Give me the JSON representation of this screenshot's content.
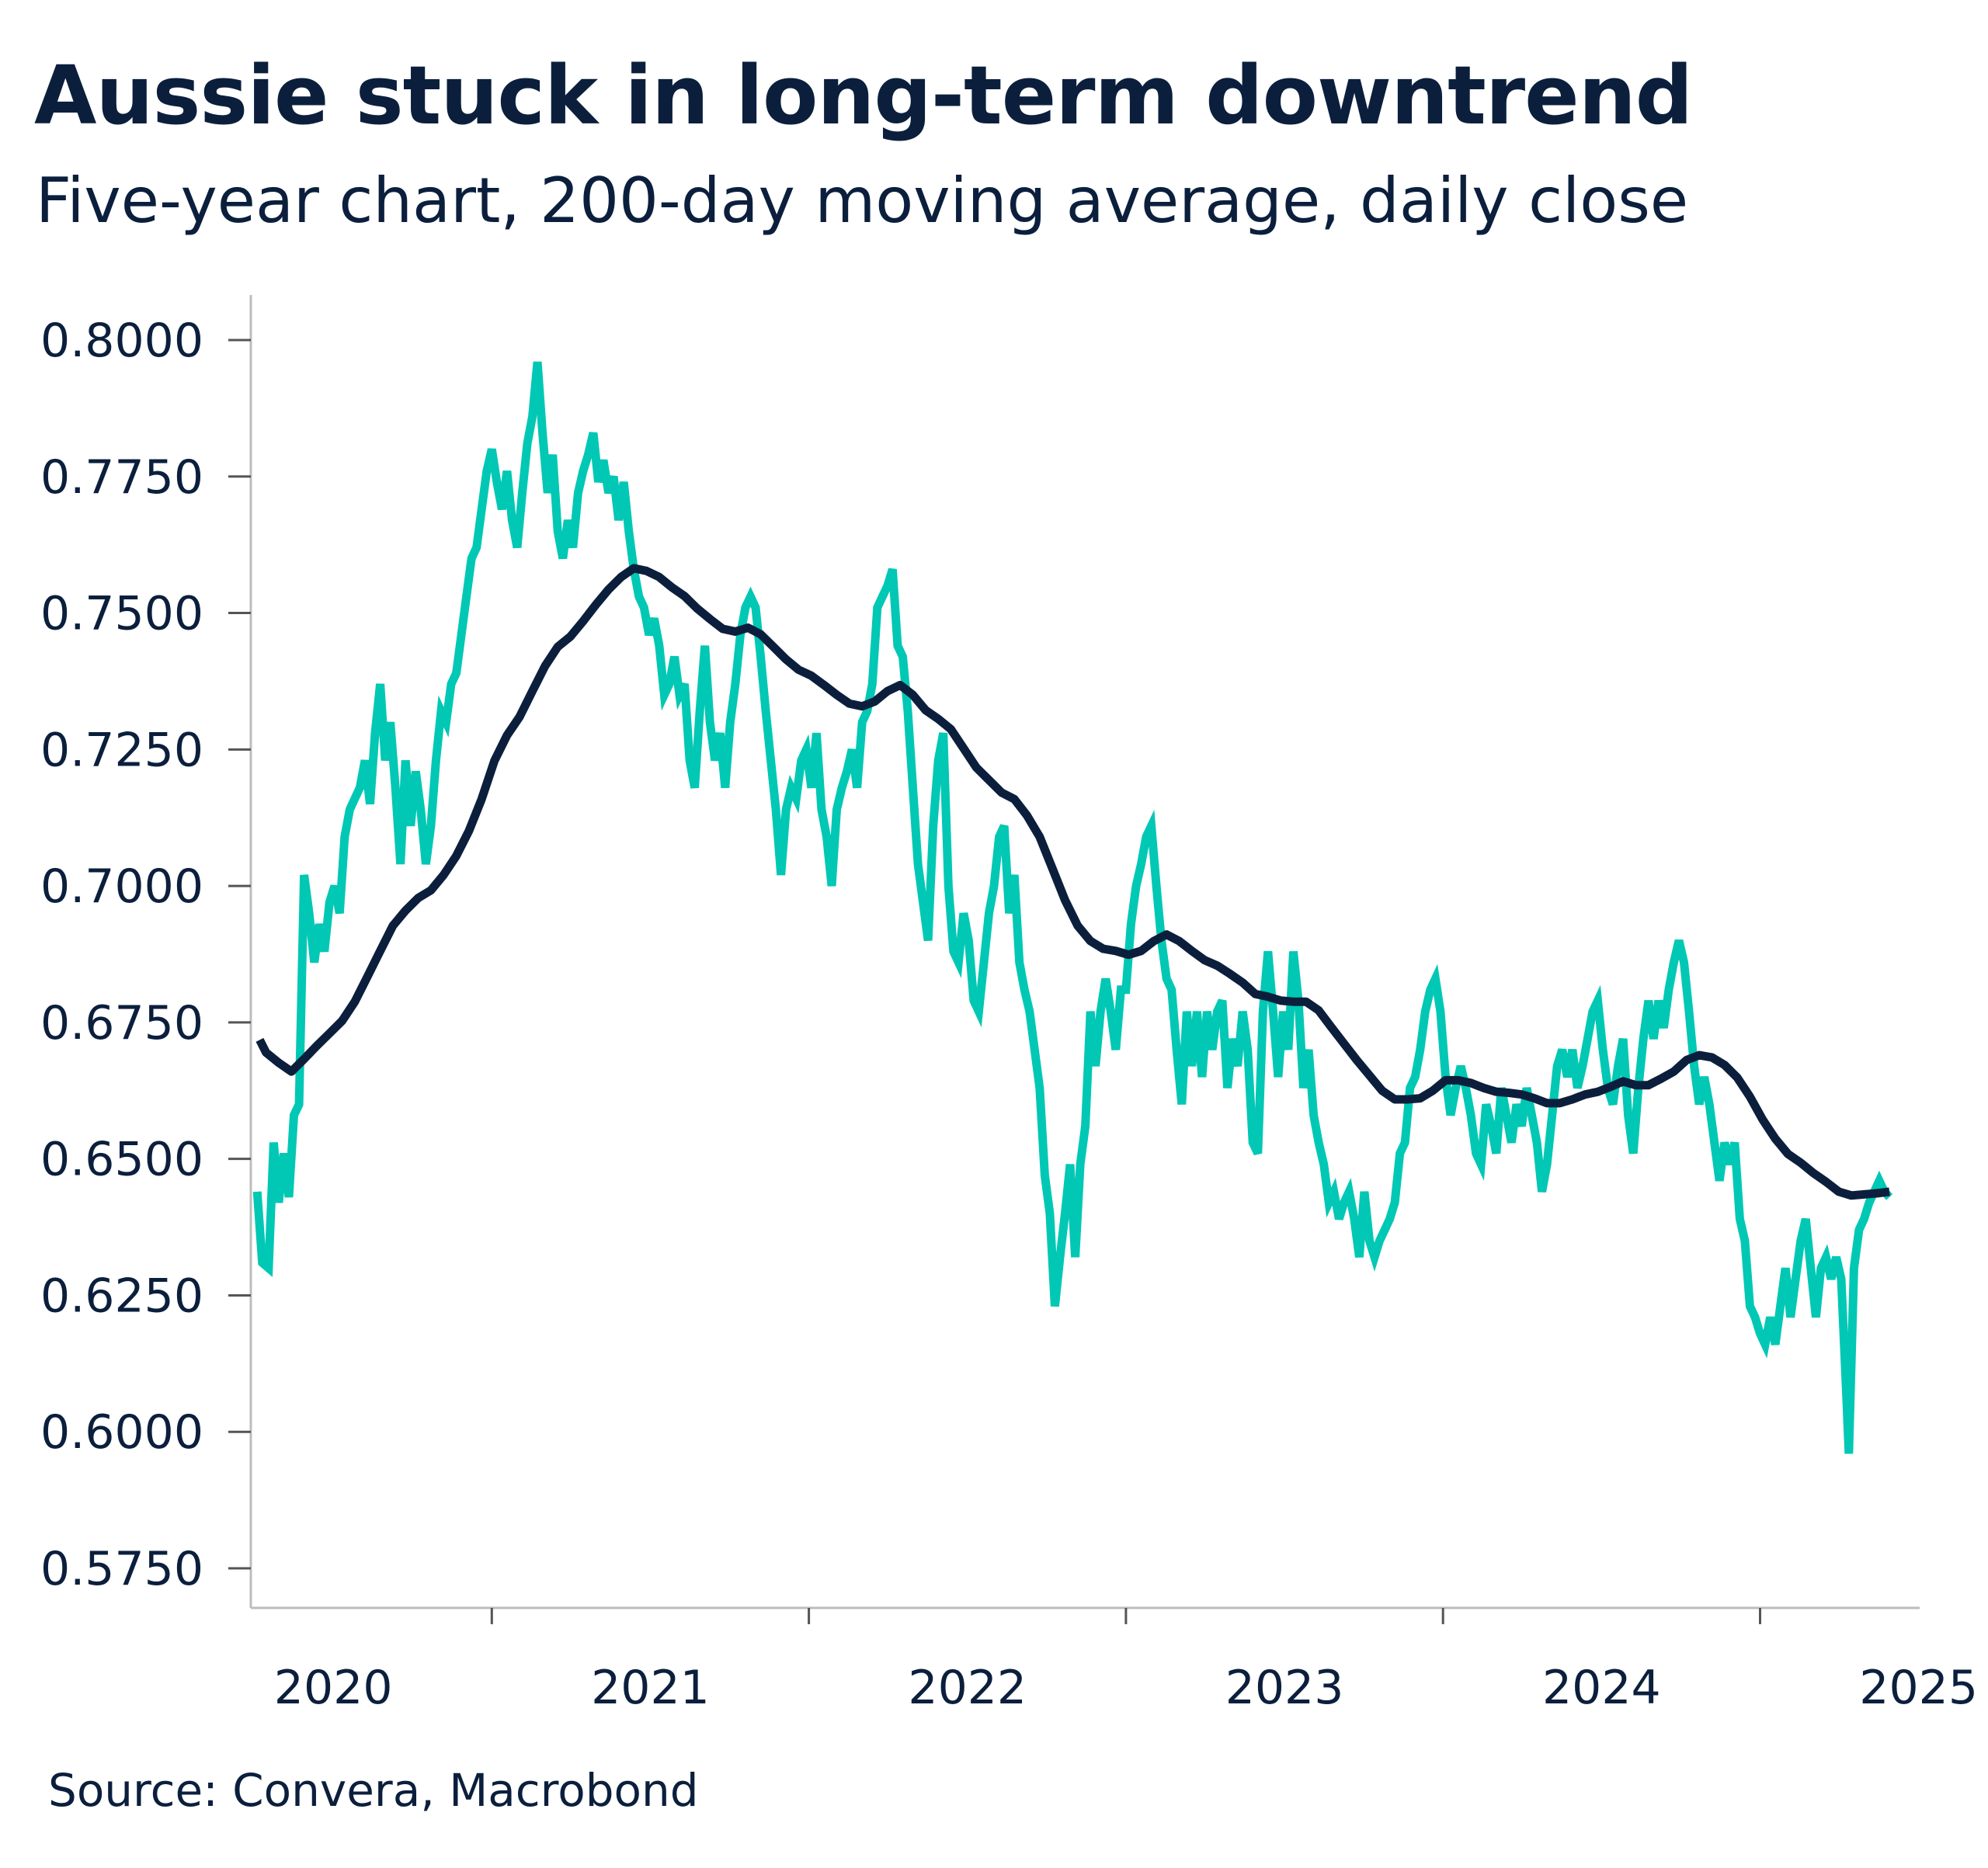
{
  "chart_data": {
    "type": "line",
    "title": "Aussie stuck in long-term downtrend",
    "subtitle": "Five-year chart, 200-day moving average, daily close",
    "source": "Source: Convera, Macrobond",
    "xlabel": "",
    "ylabel": "",
    "x_ticks": [
      "2020",
      "2021",
      "2022",
      "2023",
      "2024",
      "2025"
    ],
    "y_ticks": [
      "0.8000",
      "0.7750",
      "0.7500",
      "0.7250",
      "0.7000",
      "0.6750",
      "0.6500",
      "0.6250",
      "0.6000",
      "0.5750"
    ],
    "ylim": [
      0.575,
      0.8
    ],
    "xlim": [
      2020.24,
      2025.5
    ],
    "grid": false,
    "legend": "none",
    "colors": {
      "daily_close": "#00C8B4",
      "moving_average": "#0B1F3D",
      "text": "#0B1F3D",
      "axis": "#BDBDBD"
    },
    "series": [
      {
        "id": "daily_close",
        "x": [
          2020.26,
          2020.276,
          2020.296,
          2020.312,
          2020.328,
          2020.344,
          2020.36,
          2020.376,
          2020.392,
          2020.408,
          2020.424,
          2020.44,
          2020.456,
          2020.472,
          2020.488,
          2020.504,
          2020.52,
          2020.536,
          2020.552,
          2020.568,
          2020.584,
          2020.6,
          2020.616,
          2020.632,
          2020.648,
          2020.664,
          2020.68,
          2020.696,
          2020.712,
          2020.728,
          2020.744,
          2020.76,
          2020.776,
          2020.792,
          2020.808,
          2020.824,
          2020.84,
          2020.856,
          2020.872,
          2020.888,
          2020.904,
          2020.92,
          2020.936,
          2020.952,
          2020.968,
          2020.984,
          2021.0,
          2021.016,
          2021.032,
          2021.048,
          2021.064,
          2021.08,
          2021.096,
          2021.112,
          2021.128,
          2021.144,
          2021.16,
          2021.176,
          2021.192,
          2021.208,
          2021.224,
          2021.24,
          2021.256,
          2021.272,
          2021.288,
          2021.304,
          2021.32,
          2021.336,
          2021.352,
          2021.368,
          2021.384,
          2021.4,
          2021.416,
          2021.432,
          2021.448,
          2021.464,
          2021.48,
          2021.496,
          2021.512,
          2021.528,
          2021.544,
          2021.56,
          2021.576,
          2021.592,
          2021.608,
          2021.624,
          2021.64,
          2021.656,
          2021.672,
          2021.688,
          2021.704,
          2021.72,
          2021.736,
          2021.752,
          2021.768,
          2021.784,
          2021.8,
          2021.816,
          2021.832,
          2021.848,
          2021.864,
          2021.88,
          2021.896,
          2021.912,
          2021.928,
          2021.944,
          2021.96,
          2021.976,
          2021.992,
          2022.008,
          2022.024,
          2022.04,
          2022.056,
          2022.072,
          2022.088,
          2022.104,
          2022.12,
          2022.136,
          2022.152,
          2022.168,
          2022.184,
          2022.2,
          2022.216,
          2022.232,
          2022.248,
          2022.264,
          2022.28,
          2022.296,
          2022.312,
          2022.328,
          2022.344,
          2022.36,
          2022.376,
          2022.392,
          2022.408,
          2022.424,
          2022.44,
          2022.456,
          2022.472,
          2022.488,
          2022.504,
          2022.52,
          2022.536,
          2022.552,
          2022.568,
          2022.584,
          2022.6,
          2022.616,
          2022.632,
          2022.648,
          2022.664,
          2022.68,
          2022.696,
          2022.712,
          2022.728,
          2022.744,
          2022.76,
          2022.776,
          2022.792,
          2022.808,
          2022.824,
          2022.84,
          2022.856,
          2022.872,
          2022.888,
          2022.904,
          2022.92,
          2022.936,
          2022.952,
          2022.968,
          2022.984,
          2023.0,
          2023.016,
          2023.032,
          2023.048,
          2023.064,
          2023.08,
          2023.096,
          2023.112,
          2023.128,
          2023.144,
          2023.16,
          2023.176,
          2023.192,
          2023.208,
          2023.224,
          2023.24,
          2023.256,
          2023.272,
          2023.288,
          2023.304,
          2023.32,
          2023.336,
          2023.352,
          2023.368,
          2023.384,
          2023.4,
          2023.416,
          2023.432,
          2023.448,
          2023.464,
          2023.48,
          2023.496,
          2023.512,
          2023.528,
          2023.544,
          2023.56,
          2023.576,
          2023.592,
          2023.608,
          2023.624,
          2023.64,
          2023.656,
          2023.672,
          2023.688,
          2023.704,
          2023.72,
          2023.736,
          2023.752,
          2023.768,
          2023.784,
          2023.8,
          2023.816,
          2023.832,
          2023.848,
          2023.864,
          2023.88,
          2023.896,
          2023.912,
          2023.928,
          2023.944,
          2023.96,
          2023.976,
          2023.992,
          2024.008,
          2024.024,
          2024.04,
          2024.056,
          2024.072,
          2024.088,
          2024.104,
          2024.12,
          2024.136,
          2024.152,
          2024.168,
          2024.184,
          2024.2,
          2024.216,
          2024.232,
          2024.248,
          2024.264,
          2024.28,
          2024.296,
          2024.312,
          2024.328,
          2024.344,
          2024.36,
          2024.376,
          2024.392,
          2024.408,
          2024.424,
          2024.44,
          2024.456,
          2024.472,
          2024.488,
          2024.504,
          2024.52,
          2024.536,
          2024.552,
          2024.568,
          2024.584,
          2024.6,
          2024.616,
          2024.632,
          2024.648,
          2024.664,
          2024.68,
          2024.696,
          2024.712,
          2024.728,
          2024.744,
          2024.76,
          2024.776,
          2024.792,
          2024.808,
          2024.824,
          2024.84,
          2024.856,
          2024.872,
          2024.888,
          2024.904,
          2024.92,
          2024.936,
          2024.952,
          2024.968,
          2024.984,
          2025.0,
          2025.016,
          2025.032,
          2025.048,
          2025.064,
          2025.08,
          2025.096,
          2025.112,
          2025.128,
          2025.144,
          2025.16,
          2025.176,
          2025.192,
          2025.208,
          2025.224,
          2025.24,
          2025.256,
          2025.272,
          2025.28,
          2025.296,
          2025.312,
          2025.328,
          2025.344,
          2025.36,
          2025.376,
          2025.392,
          2025.408
        ],
        "y": [
          0.644,
          0.631,
          0.63,
          0.653,
          0.642,
          0.651,
          0.643,
          0.658,
          0.66,
          0.702,
          0.695,
          0.686,
          0.693,
          0.688,
          0.697,
          0.7,
          0.695,
          0.709,
          0.714,
          0.716,
          0.718,
          0.723,
          0.715,
          0.728,
          0.737,
          0.723,
          0.73,
          0.718,
          0.704,
          0.723,
          0.711,
          0.721,
          0.714,
          0.704,
          0.711,
          0.723,
          0.732,
          0.73,
          0.737,
          0.739,
          0.746,
          0.753,
          0.76,
          0.762,
          0.769,
          0.776,
          0.78,
          0.774,
          0.769,
          0.776,
          0.767,
          0.762,
          0.772,
          0.781,
          0.786,
          0.796,
          0.783,
          0.772,
          0.779,
          0.765,
          0.76,
          0.767,
          0.762,
          0.772,
          0.776,
          0.779,
          0.783,
          0.774,
          0.778,
          0.772,
          0.775,
          0.767,
          0.774,
          0.765,
          0.758,
          0.753,
          0.751,
          0.746,
          0.749,
          0.744,
          0.735,
          0.737,
          0.742,
          0.735,
          0.737,
          0.723,
          0.718,
          0.732,
          0.744,
          0.73,
          0.723,
          0.728,
          0.718,
          0.73,
          0.737,
          0.746,
          0.751,
          0.753,
          0.751,
          0.742,
          0.732,
          0.723,
          0.714,
          0.702,
          0.714,
          0.718,
          0.716,
          0.723,
          0.725,
          0.718,
          0.728,
          0.714,
          0.709,
          0.7,
          0.714,
          0.718,
          0.721,
          0.725,
          0.718,
          0.73,
          0.732,
          0.737,
          0.751,
          0.753,
          0.755,
          0.758,
          0.744,
          0.742,
          0.732,
          0.718,
          0.704,
          0.697,
          0.69,
          0.711,
          0.723,
          0.728,
          0.7,
          0.688,
          0.686,
          0.695,
          0.69,
          0.679,
          0.677,
          0.686,
          0.695,
          0.7,
          0.709,
          0.711,
          0.695,
          0.702,
          0.686,
          0.681,
          0.677,
          0.67,
          0.663,
          0.647,
          0.64,
          0.623,
          0.632,
          0.64,
          0.649,
          0.632,
          0.649,
          0.656,
          0.677,
          0.667,
          0.677,
          0.683,
          0.677,
          0.67,
          0.681,
          0.681,
          0.693,
          0.7,
          0.704,
          0.709,
          0.711,
          0.7,
          0.69,
          0.683,
          0.681,
          0.67,
          0.66,
          0.677,
          0.667,
          0.677,
          0.665,
          0.677,
          0.67,
          0.677,
          0.679,
          0.663,
          0.672,
          0.667,
          0.677,
          0.67,
          0.653,
          0.651,
          0.677,
          0.688,
          0.677,
          0.665,
          0.677,
          0.67,
          0.688,
          0.679,
          0.663,
          0.67,
          0.658,
          0.653,
          0.649,
          0.642,
          0.644,
          0.639,
          0.642,
          0.644,
          0.639,
          0.632,
          0.644,
          0.635,
          0.632,
          0.635,
          0.637,
          0.639,
          0.642,
          0.651,
          0.653,
          0.663,
          0.665,
          0.67,
          0.677,
          0.681,
          0.683,
          0.677,
          0.665,
          0.658,
          0.663,
          0.667,
          0.663,
          0.658,
          0.651,
          0.649,
          0.66,
          0.656,
          0.651,
          0.663,
          0.658,
          0.653,
          0.66,
          0.656,
          0.663,
          0.658,
          0.653,
          0.644,
          0.649,
          0.658,
          0.667,
          0.67,
          0.665,
          0.67,
          0.663,
          0.667,
          0.672,
          0.677,
          0.679,
          0.67,
          0.663,
          0.66,
          0.667,
          0.672,
          0.658,
          0.651,
          0.663,
          0.672,
          0.679,
          0.672,
          0.679,
          0.674,
          0.681,
          0.686,
          0.69,
          0.686,
          0.677,
          0.667,
          0.66,
          0.665,
          0.66,
          0.653,
          0.646,
          0.653,
          0.649,
          0.653,
          0.639,
          0.635,
          0.623,
          0.621,
          0.618,
          0.616,
          0.621,
          0.616,
          0.623,
          0.63,
          0.621,
          0.628,
          0.635,
          0.639,
          0.63,
          0.621,
          0.63,
          0.632,
          0.628,
          0.632,
          0.628,
          0.607,
          0.596,
          0.63,
          0.637,
          0.639,
          0.642,
          0.644,
          0.646,
          0.644,
          0.643
        ]
      },
      {
        "id": "moving_average",
        "x": [
          2020.268,
          2020.288,
          2020.328,
          2020.368,
          2020.408,
          2020.448,
          2020.488,
          2020.528,
          2020.568,
          2020.608,
          2020.648,
          2020.688,
          2020.728,
          2020.768,
          2020.808,
          2020.848,
          2020.888,
          2020.928,
          2020.968,
          2021.008,
          2021.048,
          2021.088,
          2021.128,
          2021.168,
          2021.208,
          2021.248,
          2021.288,
          2021.328,
          2021.368,
          2021.408,
          2021.448,
          2021.488,
          2021.528,
          2021.568,
          2021.608,
          2021.648,
          2021.688,
          2021.728,
          2021.768,
          2021.808,
          2021.848,
          2021.888,
          2021.928,
          2021.968,
          2022.008,
          2022.048,
          2022.088,
          2022.128,
          2022.168,
          2022.208,
          2022.248,
          2022.288,
          2022.328,
          2022.368,
          2022.408,
          2022.448,
          2022.488,
          2022.528,
          2022.568,
          2022.608,
          2022.648,
          2022.688,
          2022.728,
          2022.768,
          2022.808,
          2022.848,
          2022.888,
          2022.928,
          2022.968,
          2023.008,
          2023.048,
          2023.088,
          2023.128,
          2023.168,
          2023.208,
          2023.248,
          2023.288,
          2023.328,
          2023.368,
          2023.408,
          2023.448,
          2023.488,
          2023.528,
          2023.568,
          2023.608,
          2023.648,
          2023.688,
          2023.728,
          2023.768,
          2023.808,
          2023.848,
          2023.888,
          2023.928,
          2023.968,
          2024.008,
          2024.048,
          2024.088,
          2024.128,
          2024.168,
          2024.208,
          2024.248,
          2024.288,
          2024.328,
          2024.368,
          2024.408,
          2024.448,
          2024.488,
          2024.528,
          2024.568,
          2024.608,
          2024.648,
          2024.688,
          2024.728,
          2024.768,
          2024.808,
          2024.848,
          2024.888,
          2024.928,
          2024.968,
          2025.008,
          2025.048,
          2025.088,
          2025.128,
          2025.168,
          2025.208,
          2025.248,
          2025.288,
          2025.328,
          2025.368,
          2025.408
        ],
        "y": [
          0.6718,
          0.6695,
          0.6676,
          0.666,
          0.6683,
          0.6707,
          0.673,
          0.6753,
          0.6788,
          0.6834,
          0.6881,
          0.6927,
          0.6955,
          0.6978,
          0.6992,
          0.702,
          0.7055,
          0.7101,
          0.7159,
          0.7229,
          0.7276,
          0.731,
          0.7357,
          0.7403,
          0.7438,
          0.7457,
          0.7485,
          0.7515,
          0.7543,
          0.7566,
          0.7582,
          0.7577,
          0.7566,
          0.7547,
          0.7531,
          0.7508,
          0.7489,
          0.7471,
          0.7466,
          0.7473,
          0.7461,
          0.7438,
          0.7415,
          0.7396,
          0.7385,
          0.7368,
          0.735,
          0.7334,
          0.7329,
          0.7338,
          0.7357,
          0.7368,
          0.735,
          0.7322,
          0.7306,
          0.7287,
          0.7252,
          0.7217,
          0.7194,
          0.7171,
          0.7159,
          0.7129,
          0.709,
          0.7032,
          0.6974,
          0.6927,
          0.6899,
          0.6885,
          0.6881,
          0.6874,
          0.6881,
          0.6899,
          0.6911,
          0.6899,
          0.6881,
          0.6864,
          0.6854,
          0.6839,
          0.6823,
          0.6802,
          0.6797,
          0.679,
          0.6788,
          0.6788,
          0.6772,
          0.6741,
          0.6711,
          0.6681,
          0.6653,
          0.6625,
          0.6609,
          0.6609,
          0.6611,
          0.6625,
          0.6644,
          0.6644,
          0.6639,
          0.663,
          0.6623,
          0.6621,
          0.6618,
          0.6611,
          0.6602,
          0.6602,
          0.6609,
          0.6618,
          0.6623,
          0.6632,
          0.6642,
          0.6635,
          0.6635,
          0.6647,
          0.666,
          0.6681,
          0.669,
          0.6686,
          0.6672,
          0.6649,
          0.6614,
          0.6572,
          0.6537,
          0.6509,
          0.6493,
          0.6474,
          0.6458,
          0.644,
          0.6433,
          0.6435,
          0.6437,
          0.644
        ]
      }
    ]
  }
}
